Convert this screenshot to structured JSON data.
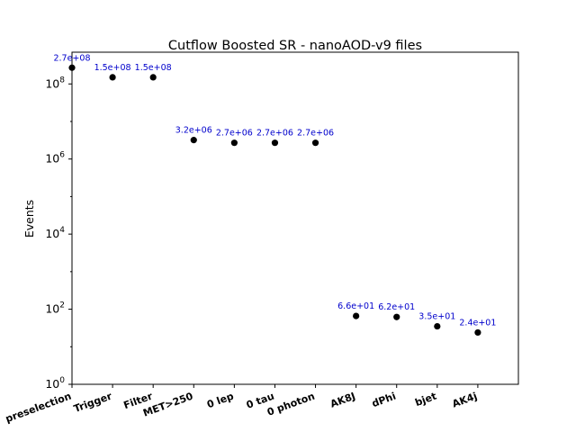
{
  "chart_data": {
    "type": "scatter",
    "title": "Cutflow Boosted SR - nanoAOD-v9 files",
    "xlabel": "",
    "ylabel": "Events",
    "yscale": "log",
    "ylim": [
      1,
      700000000
    ],
    "yticks": [
      {
        "base": "10",
        "exp": "0",
        "value": 1
      },
      {
        "base": "10",
        "exp": "2",
        "value": 100
      },
      {
        "base": "10",
        "exp": "4",
        "value": 10000
      },
      {
        "base": "10",
        "exp": "6",
        "value": 1000000
      },
      {
        "base": "10",
        "exp": "8",
        "value": 100000000
      }
    ],
    "categories": [
      "preselection",
      "Trigger",
      "Filter",
      "MET>250",
      "0 lep",
      "0 tau",
      "0 photon",
      "AK8J",
      "dPhi",
      "bjet",
      "AK4j"
    ],
    "values": [
      270000000,
      150000000,
      150000000,
      3200000,
      2700000,
      2700000,
      2700000,
      66,
      62,
      35,
      24
    ],
    "labels": [
      "2.7e+08",
      "1.5e+08",
      "1.5e+08",
      "3.2e+06",
      "2.7e+06",
      "2.7e+06",
      "2.7e+06",
      "6.6e+01",
      "6.2e+01",
      "3.5e+01",
      "2.4e+01"
    ],
    "marker_color": "#000000",
    "label_color": "#0000cc",
    "grid": false,
    "legend": "none"
  }
}
